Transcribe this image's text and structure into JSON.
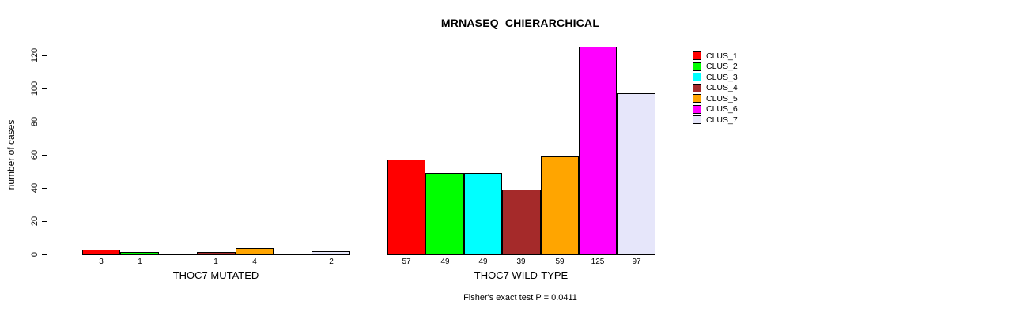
{
  "title": "MRNASEQ_CHIERARCHICAL",
  "chart_data": {
    "type": "bar",
    "title": "MRNASEQ_CHIERARCHICAL",
    "ylabel": "number of cases",
    "xlabel": "",
    "ylim": [
      0,
      125
    ],
    "yticks": [
      0,
      20,
      40,
      60,
      80,
      100,
      120
    ],
    "grid": false,
    "legend_position": "right",
    "series": [
      {
        "name": "CLUS_1",
        "color": "#ff0000",
        "values": [
          3,
          57
        ]
      },
      {
        "name": "CLUS_2",
        "color": "#00ff00",
        "values": [
          1,
          49
        ]
      },
      {
        "name": "CLUS_3",
        "color": "#00ffff",
        "values": [
          0,
          49
        ]
      },
      {
        "name": "CLUS_4",
        "color": "#a52a2a",
        "values": [
          1,
          39
        ]
      },
      {
        "name": "CLUS_5",
        "color": "#ffa500",
        "values": [
          4,
          59
        ]
      },
      {
        "name": "CLUS_6",
        "color": "#ff00ff",
        "values": [
          0,
          125
        ]
      },
      {
        "name": "CLUS_7",
        "color": "#e6e6fa",
        "values": [
          2,
          97
        ]
      }
    ],
    "groups": [
      {
        "label": "THOC7 MUTATED",
        "values": [
          3,
          1,
          0,
          1,
          4,
          0,
          2
        ]
      },
      {
        "label": "THOC7 WILD-TYPE",
        "values": [
          57,
          49,
          49,
          39,
          59,
          125,
          97
        ]
      }
    ],
    "annotation": "Fisher's exact test P = 0.0411"
  },
  "legend": {
    "items": [
      {
        "label": "CLUS_1",
        "color": "#ff0000"
      },
      {
        "label": "CLUS_2",
        "color": "#00ff00"
      },
      {
        "label": "CLUS_3",
        "color": "#00ffff"
      },
      {
        "label": "CLUS_4",
        "color": "#a52a2a"
      },
      {
        "label": "CLUS_5",
        "color": "#ffa500"
      },
      {
        "label": "CLUS_6",
        "color": "#ff00ff"
      },
      {
        "label": "CLUS_7",
        "color": "#e6e6fa"
      }
    ]
  },
  "footer": {
    "text": "Fisher's exact test P = 0.0411"
  }
}
